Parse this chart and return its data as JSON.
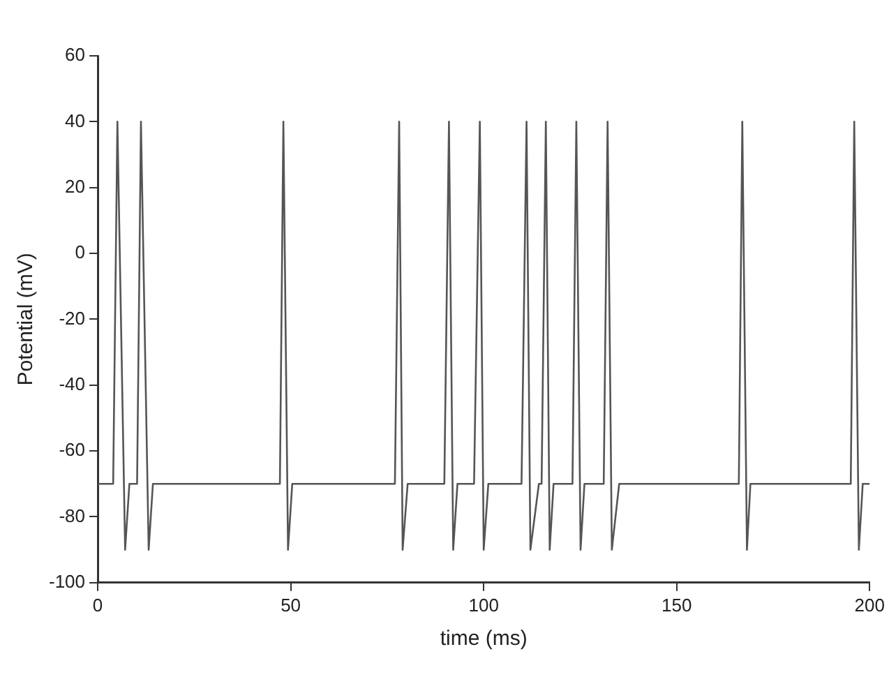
{
  "chart_data": {
    "type": "line",
    "xlabel": "time (ms)",
    "ylabel": "Potential (mV)",
    "xlim": [
      0,
      200
    ],
    "xticks": [
      0,
      50,
      100,
      150,
      200
    ],
    "ylim": [
      -100,
      60
    ],
    "yticks": [
      -100,
      -80,
      -60,
      -40,
      -20,
      0,
      20,
      40,
      60
    ],
    "grid": false,
    "legend": false,
    "marker": "none",
    "line_style": "solid",
    "series": [
      {
        "color": "#555555",
        "x": [
          0,
          4.0,
          5.1,
          7.1,
          8.2,
          10.2,
          11.2,
          13.2,
          14.3,
          47.2,
          48.1,
          49.3,
          50.4,
          77.0,
          78.1,
          79.0,
          80.3,
          89.8,
          91.0,
          92.1,
          93.2,
          97.5,
          99.0,
          100.0,
          101.2,
          109.8,
          111.1,
          112.1,
          114.3,
          115.0,
          116.1,
          117.1,
          118.1,
          123.0,
          124.0,
          125.1,
          126.1,
          131.1,
          132.1,
          133.2,
          135.1,
          166.1,
          167.0,
          168.2,
          169.1,
          195.1,
          196.0,
          197.2,
          198.2,
          200
        ],
        "values": [
          -70,
          -70,
          40,
          -90,
          -70,
          -70,
          40,
          -90,
          -70,
          -70,
          40,
          -90,
          -70,
          -70,
          40,
          -90,
          -70,
          -70,
          40,
          -90,
          -70,
          -70,
          40,
          -90,
          -70,
          -70,
          40,
          -90,
          -70,
          -70,
          40,
          -90,
          -70,
          -70,
          40,
          -90,
          -70,
          -70,
          40,
          -90,
          -70,
          -70,
          40,
          -90,
          -70,
          -70,
          40,
          -90,
          -70,
          -70
        ]
      }
    ]
  }
}
